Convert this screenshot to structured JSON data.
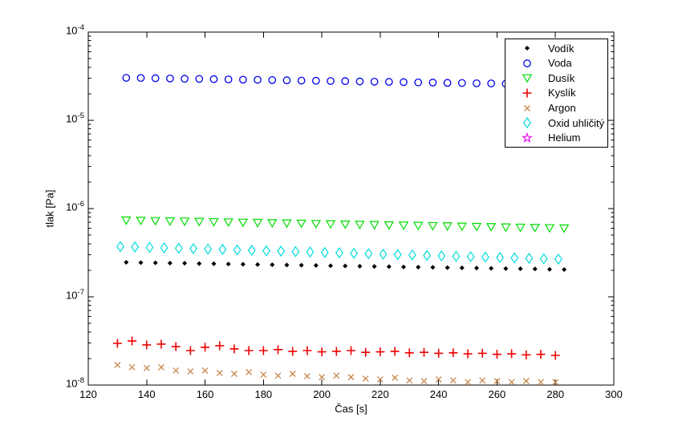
{
  "window": {
    "background": "#ffffff",
    "axis_color": "#000000"
  },
  "chart_data": {
    "type": "scatter",
    "title": "",
    "xlabel": "Čas [s]",
    "ylabel": "tlak [Pa]",
    "grid": false,
    "x_axis": {
      "min": 120,
      "max": 300,
      "ticks": [
        120,
        140,
        160,
        180,
        200,
        220,
        240,
        260,
        280,
        300
      ]
    },
    "y_axis": {
      "scale": "log",
      "min_exp": -8,
      "max_exp": -4,
      "tick_exponents": [
        -4,
        -5,
        -6,
        -7,
        -8
      ],
      "minor_multiples": [
        2,
        3,
        4,
        5,
        6,
        7,
        8,
        9
      ]
    },
    "legend": {
      "position": "upper-right",
      "background": "#ffffff",
      "border_color": "#000000"
    },
    "series": [
      {
        "name": "Vodík",
        "marker": "point",
        "color": "#000000",
        "points": [
          [
            133,
            2.46e-07
          ],
          [
            138,
            2.44e-07
          ],
          [
            143,
            2.43e-07
          ],
          [
            148,
            2.41e-07
          ],
          [
            153,
            2.4e-07
          ],
          [
            158,
            2.38e-07
          ],
          [
            163,
            2.37e-07
          ],
          [
            168,
            2.35e-07
          ],
          [
            173,
            2.34e-07
          ],
          [
            178,
            2.32e-07
          ],
          [
            183,
            2.31e-07
          ],
          [
            188,
            2.29e-07
          ],
          [
            193,
            2.28e-07
          ],
          [
            198,
            2.27e-07
          ],
          [
            203,
            2.25e-07
          ],
          [
            208,
            2.24e-07
          ],
          [
            213,
            2.22e-07
          ],
          [
            218,
            2.21e-07
          ],
          [
            223,
            2.2e-07
          ],
          [
            228,
            2.18e-07
          ],
          [
            233,
            2.17e-07
          ],
          [
            238,
            2.16e-07
          ],
          [
            243,
            2.14e-07
          ],
          [
            248,
            2.13e-07
          ],
          [
            253,
            2.12e-07
          ],
          [
            258,
            2.1e-07
          ],
          [
            263,
            2.09e-07
          ],
          [
            268,
            2.08e-07
          ],
          [
            273,
            2.07e-07
          ],
          [
            278,
            2.05e-07
          ],
          [
            283,
            2.04e-07
          ]
        ]
      },
      {
        "name": "Voda",
        "marker": "circle",
        "color": "#0000EE",
        "points": [
          [
            133,
            3.03e-05
          ],
          [
            138,
            3.02e-05
          ],
          [
            143,
            3e-05
          ],
          [
            148,
            2.98e-05
          ],
          [
            153,
            2.96e-05
          ],
          [
            158,
            2.95e-05
          ],
          [
            163,
            2.93e-05
          ],
          [
            168,
            2.91e-05
          ],
          [
            173,
            2.89e-05
          ],
          [
            178,
            2.88e-05
          ],
          [
            183,
            2.86e-05
          ],
          [
            188,
            2.84e-05
          ],
          [
            193,
            2.82e-05
          ],
          [
            198,
            2.81e-05
          ],
          [
            203,
            2.79e-05
          ],
          [
            208,
            2.78e-05
          ],
          [
            213,
            2.76e-05
          ],
          [
            218,
            2.74e-05
          ],
          [
            223,
            2.73e-05
          ],
          [
            228,
            2.71e-05
          ],
          [
            233,
            2.69e-05
          ],
          [
            238,
            2.68e-05
          ],
          [
            243,
            2.66e-05
          ],
          [
            248,
            2.65e-05
          ],
          [
            253,
            2.63e-05
          ],
          [
            258,
            2.62e-05
          ],
          [
            263,
            2.6e-05
          ],
          [
            268,
            2.58e-05
          ],
          [
            273,
            2.57e-05
          ],
          [
            278,
            2.55e-05
          ]
        ]
      },
      {
        "name": "Dusík",
        "marker": "triangle-down",
        "color": "#00DC00",
        "points": [
          [
            133,
            7.41e-07
          ],
          [
            138,
            7.36e-07
          ],
          [
            143,
            7.31e-07
          ],
          [
            148,
            7.26e-07
          ],
          [
            153,
            7.21e-07
          ],
          [
            158,
            7.16e-07
          ],
          [
            163,
            7.11e-07
          ],
          [
            168,
            7.06e-07
          ],
          [
            173,
            7.01e-07
          ],
          [
            178,
            6.96e-07
          ],
          [
            183,
            6.91e-07
          ],
          [
            188,
            6.87e-07
          ],
          [
            193,
            6.82e-07
          ],
          [
            198,
            6.77e-07
          ],
          [
            203,
            6.73e-07
          ],
          [
            208,
            6.68e-07
          ],
          [
            213,
            6.63e-07
          ],
          [
            218,
            6.59e-07
          ],
          [
            223,
            6.54e-07
          ],
          [
            228,
            6.5e-07
          ],
          [
            233,
            6.45e-07
          ],
          [
            238,
            6.41e-07
          ],
          [
            243,
            6.37e-07
          ],
          [
            248,
            6.32e-07
          ],
          [
            253,
            6.28e-07
          ],
          [
            258,
            6.24e-07
          ],
          [
            263,
            6.19e-07
          ],
          [
            268,
            6.15e-07
          ],
          [
            273,
            6.11e-07
          ],
          [
            278,
            6.07e-07
          ],
          [
            283,
            6.03e-07
          ]
        ]
      },
      {
        "name": "Kyslík",
        "marker": "plus",
        "color": "#EE0000",
        "points": [
          [
            130,
            2.97e-08
          ],
          [
            135,
            3.16e-08
          ],
          [
            140,
            2.85e-08
          ],
          [
            145,
            2.91e-08
          ],
          [
            150,
            2.73e-08
          ],
          [
            155,
            2.46e-08
          ],
          [
            160,
            2.68e-08
          ],
          [
            165,
            2.79e-08
          ],
          [
            170,
            2.57e-08
          ],
          [
            175,
            2.46e-08
          ],
          [
            180,
            2.46e-08
          ],
          [
            185,
            2.52e-08
          ],
          [
            190,
            2.41e-08
          ],
          [
            195,
            2.46e-08
          ],
          [
            200,
            2.38e-08
          ],
          [
            205,
            2.41e-08
          ],
          [
            210,
            2.46e-08
          ],
          [
            215,
            2.35e-08
          ],
          [
            220,
            2.38e-08
          ],
          [
            225,
            2.41e-08
          ],
          [
            230,
            2.32e-08
          ],
          [
            235,
            2.35e-08
          ],
          [
            240,
            2.29e-08
          ],
          [
            245,
            2.32e-08
          ],
          [
            250,
            2.26e-08
          ],
          [
            255,
            2.29e-08
          ],
          [
            260,
            2.23e-08
          ],
          [
            265,
            2.26e-08
          ],
          [
            270,
            2.2e-08
          ],
          [
            275,
            2.23e-08
          ],
          [
            280,
            2.17e-08
          ]
        ]
      },
      {
        "name": "Argon",
        "marker": "x",
        "color": "#C8874B",
        "points": [
          [
            130,
            1.69e-08
          ],
          [
            135,
            1.59e-08
          ],
          [
            140,
            1.56e-08
          ],
          [
            145,
            1.59e-08
          ],
          [
            150,
            1.46e-08
          ],
          [
            155,
            1.43e-08
          ],
          [
            160,
            1.46e-08
          ],
          [
            165,
            1.37e-08
          ],
          [
            170,
            1.34e-08
          ],
          [
            175,
            1.4e-08
          ],
          [
            180,
            1.31e-08
          ],
          [
            185,
            1.28e-08
          ],
          [
            190,
            1.34e-08
          ],
          [
            195,
            1.26e-08
          ],
          [
            200,
            1.23e-08
          ],
          [
            205,
            1.28e-08
          ],
          [
            210,
            1.23e-08
          ],
          [
            215,
            1.18e-08
          ],
          [
            220,
            1.16e-08
          ],
          [
            225,
            1.21e-08
          ],
          [
            230,
            1.13e-08
          ],
          [
            235,
            1.11e-08
          ],
          [
            240,
            1.16e-08
          ],
          [
            245,
            1.13e-08
          ],
          [
            250,
            1.08e-08
          ],
          [
            255,
            1.13e-08
          ],
          [
            260,
            1.11e-08
          ],
          [
            265,
            1.08e-08
          ],
          [
            270,
            1.11e-08
          ],
          [
            275,
            1.08e-08
          ],
          [
            280,
            1.08e-08
          ]
        ]
      },
      {
        "name": "Oxid uhličitý",
        "marker": "diamond",
        "color": "#00DCDC",
        "points": [
          [
            131,
            3.71e-07
          ],
          [
            136,
            3.67e-07
          ],
          [
            141,
            3.63e-07
          ],
          [
            146,
            3.59e-07
          ],
          [
            151,
            3.55e-07
          ],
          [
            156,
            3.51e-07
          ],
          [
            161,
            3.47e-07
          ],
          [
            166,
            3.44e-07
          ],
          [
            171,
            3.4e-07
          ],
          [
            176,
            3.36e-07
          ],
          [
            181,
            3.32e-07
          ],
          [
            186,
            3.29e-07
          ],
          [
            191,
            3.25e-07
          ],
          [
            196,
            3.22e-07
          ],
          [
            201,
            3.18e-07
          ],
          [
            206,
            3.15e-07
          ],
          [
            211,
            3.11e-07
          ],
          [
            216,
            3.08e-07
          ],
          [
            221,
            3.04e-07
          ],
          [
            226,
            3.01e-07
          ],
          [
            231,
            2.98e-07
          ],
          [
            236,
            2.94e-07
          ],
          [
            241,
            2.91e-07
          ],
          [
            246,
            2.88e-07
          ],
          [
            251,
            2.85e-07
          ],
          [
            256,
            2.82e-07
          ],
          [
            261,
            2.79e-07
          ],
          [
            266,
            2.76e-07
          ],
          [
            271,
            2.73e-07
          ],
          [
            276,
            2.7e-07
          ],
          [
            281,
            2.67e-07
          ]
        ]
      },
      {
        "name": "Helium",
        "marker": "pentagram",
        "color": "#EE00EE",
        "points": []
      }
    ]
  }
}
